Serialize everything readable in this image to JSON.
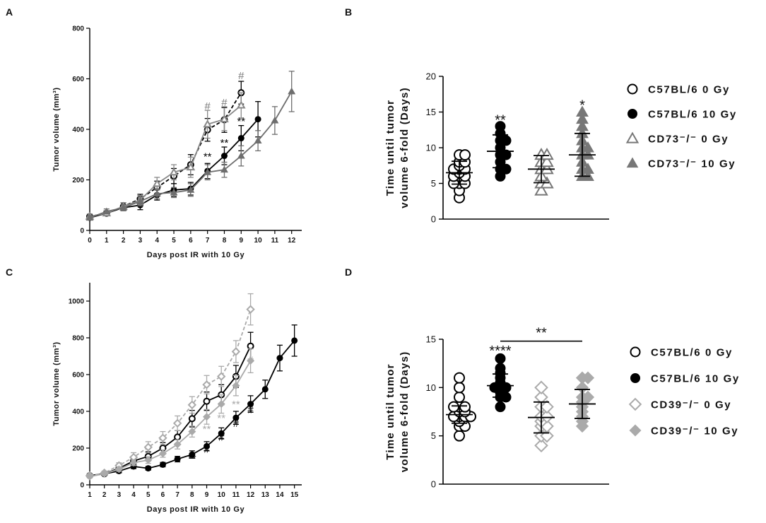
{
  "panels": {
    "a": {
      "label": "A"
    },
    "b": {
      "label": "B"
    },
    "c": {
      "label": "C"
    },
    "d": {
      "label": "D"
    }
  },
  "chart_data": [
    {
      "id": "A",
      "type": "line",
      "xlabel": "Days post IR with 10 Gy",
      "ylabel": "Tumor volume (mm³)",
      "xlim": [
        0,
        12.6
      ],
      "ylim": [
        0,
        800
      ],
      "xticks": [
        0,
        1,
        2,
        3,
        4,
        5,
        6,
        7,
        8,
        9,
        10,
        11,
        12
      ],
      "yticks": [
        0,
        200,
        400,
        600,
        800
      ],
      "series": [
        {
          "name": "C57BL/6 0 Gy",
          "style": "dashed-open-circle",
          "color": "#000000",
          "x": [
            0,
            1,
            2,
            3,
            4,
            5,
            6,
            7,
            8,
            9
          ],
          "y": [
            55,
            68,
            95,
            125,
            170,
            215,
            260,
            398,
            438,
            545
          ],
          "err": [
            10,
            10,
            15,
            18,
            25,
            30,
            40,
            45,
            50,
            45
          ]
        },
        {
          "name": "C57BL/6 10 Gy",
          "style": "solid-filled-circle",
          "color": "#000000",
          "x": [
            0,
            1,
            2,
            3,
            4,
            5,
            6,
            7,
            8,
            9,
            10
          ],
          "y": [
            50,
            68,
            90,
            100,
            140,
            160,
            165,
            235,
            295,
            365,
            440
          ],
          "err": [
            8,
            10,
            12,
            18,
            20,
            25,
            25,
            30,
            35,
            50,
            70
          ]
        },
        {
          "name": "CD73-/- 0 Gy",
          "style": "solid-open-triangle",
          "color": "#888888",
          "x": [
            0,
            1,
            2,
            3,
            4,
            5,
            6,
            7,
            8,
            9
          ],
          "y": [
            55,
            68,
            95,
            120,
            185,
            230,
            250,
            420,
            440,
            495
          ],
          "err": [
            10,
            10,
            15,
            18,
            25,
            30,
            40,
            55,
            45,
            50
          ]
        },
        {
          "name": "CD73-/- 10 Gy",
          "style": "solid-filled-triangle",
          "color": "#6e6e6e",
          "x": [
            0,
            1,
            2,
            3,
            4,
            5,
            6,
            7,
            8,
            9,
            10,
            11,
            12
          ],
          "y": [
            50,
            75,
            90,
            115,
            145,
            150,
            160,
            230,
            240,
            295,
            355,
            435,
            550
          ],
          "err": [
            8,
            10,
            12,
            18,
            20,
            20,
            25,
            30,
            30,
            40,
            40,
            55,
            80
          ]
        }
      ],
      "annotations": [
        {
          "text": "#",
          "x": 7,
          "y": 478,
          "color": "#777777"
        },
        {
          "text": "#",
          "x": 8,
          "y": 493,
          "color": "#777777"
        },
        {
          "text": "#",
          "x": 9,
          "y": 598,
          "color": "#777777"
        },
        {
          "text": "**",
          "x": 7,
          "y": 278,
          "color": "#000000"
        },
        {
          "text": "**",
          "x": 8,
          "y": 333,
          "color": "#000000"
        },
        {
          "text": "**",
          "x": 9,
          "y": 418,
          "color": "#000000"
        }
      ]
    },
    {
      "id": "B",
      "type": "scatter",
      "ylabel_line1": "Time until tumor",
      "ylabel_line2": "volume 6-fold (Days)",
      "ylim": [
        0,
        20
      ],
      "yticks": [
        0,
        5,
        10,
        15,
        20
      ],
      "groups": [
        {
          "name": "C57BL/6 0 Gy",
          "marker": "open-circle",
          "color": "#000000",
          "mean": 6.5,
          "sd": 1.6,
          "points": [
            3,
            4,
            5,
            5,
            5,
            6,
            6,
            6,
            6.5,
            7,
            7,
            7,
            7.5,
            8,
            8,
            9,
            9
          ]
        },
        {
          "name": "C57BL/6 10 Gy",
          "marker": "filled-circle",
          "color": "#000000",
          "mean": 9.5,
          "sd": 2.3,
          "points": [
            6,
            7,
            7,
            8,
            9,
            9,
            10,
            11,
            11,
            12,
            13
          ]
        },
        {
          "name": "CD73-/- 0 Gy",
          "marker": "open-triangle",
          "color": "#777777",
          "mean": 7.0,
          "sd": 1.9,
          "points": [
            4,
            5,
            5,
            6,
            7,
            7,
            8,
            8,
            9,
            9
          ]
        },
        {
          "name": "CD73-/- 10 Gy",
          "marker": "filled-triangle",
          "color": "#777777",
          "mean": 9.0,
          "sd": 3.0,
          "points": [
            6,
            6,
            7,
            7,
            8,
            9,
            9,
            10,
            10,
            11,
            12,
            13,
            14,
            15
          ]
        }
      ],
      "annotations": [
        {
          "text": "**",
          "group": 1,
          "y": 13.2
        },
        {
          "text": "*",
          "group": 3,
          "y": 15.3
        }
      ],
      "legend": [
        "C57BL/6 0 Gy",
        "C57BL/6 10 Gy",
        "CD73⁻/⁻ 0 Gy",
        "CD73⁻/⁻ 10 Gy"
      ]
    },
    {
      "id": "C",
      "type": "line",
      "xlabel": "Days post IR with 10 Gy",
      "ylabel": "Tumor volume (mm³)",
      "xlim": [
        1,
        15.5
      ],
      "ylim": [
        0,
        1100
      ],
      "xticks": [
        1,
        2,
        3,
        4,
        5,
        6,
        7,
        8,
        9,
        10,
        11,
        12,
        13,
        14,
        15
      ],
      "yticks": [
        0,
        200,
        400,
        600,
        800,
        1000
      ],
      "series": [
        {
          "name": "C57BL/6 0 Gy",
          "style": "solid-open-circle",
          "color": "#000000",
          "x": [
            1,
            2,
            3,
            4,
            5,
            6,
            7,
            8,
            9,
            10,
            11,
            12
          ],
          "y": [
            50,
            60,
            90,
            130,
            155,
            200,
            260,
            360,
            455,
            490,
            590,
            755
          ],
          "err": [
            8,
            10,
            12,
            20,
            25,
            30,
            35,
            45,
            50,
            55,
            60,
            75
          ]
        },
        {
          "name": "C57BL/6 10 Gy",
          "style": "solid-filled-circle",
          "color": "#000000",
          "x": [
            1,
            2,
            3,
            4,
            5,
            6,
            7,
            8,
            9,
            10,
            11,
            12,
            13,
            14,
            15
          ],
          "y": [
            50,
            60,
            75,
            100,
            90,
            110,
            140,
            165,
            210,
            280,
            365,
            440,
            520,
            690,
            785
          ],
          "err": [
            8,
            8,
            10,
            12,
            10,
            12,
            15,
            20,
            25,
            30,
            35,
            45,
            50,
            70,
            85
          ]
        },
        {
          "name": "CD39-/- 0 Gy",
          "style": "dashed-open-diamond",
          "color": "#aaaaaa",
          "x": [
            1,
            2,
            3,
            4,
            5,
            6,
            7,
            8,
            9,
            10,
            11,
            12
          ],
          "y": [
            50,
            65,
            105,
            150,
            205,
            255,
            335,
            435,
            545,
            590,
            725,
            955
          ],
          "err": [
            8,
            10,
            15,
            25,
            30,
            35,
            40,
            45,
            50,
            55,
            60,
            85
          ]
        },
        {
          "name": "CD39-/- 10 Gy",
          "style": "solid-filled-diamond",
          "color": "#aaaaaa",
          "x": [
            1,
            2,
            3,
            4,
            5,
            6,
            7,
            8,
            9,
            10,
            11,
            12
          ],
          "y": [
            45,
            60,
            85,
            120,
            135,
            170,
            220,
            290,
            370,
            440,
            540,
            675
          ],
          "err": [
            8,
            10,
            12,
            15,
            18,
            20,
            25,
            30,
            40,
            50,
            55,
            65
          ]
        }
      ],
      "annotations": [
        {
          "text": "**",
          "x": 8,
          "y": 125,
          "color": "#000000"
        },
        {
          "text": "**",
          "x": 9,
          "y": 285,
          "color": "#aaaaaa"
        },
        {
          "text": "#",
          "x": 9,
          "y": 175,
          "color": "#000000"
        },
        {
          "text": "**",
          "x": 10,
          "y": 345,
          "color": "#aaaaaa"
        },
        {
          "text": "#",
          "x": 10,
          "y": 240,
          "color": "#000000"
        },
        {
          "text": "**",
          "x": 11,
          "y": 420,
          "color": "#aaaaaa"
        },
        {
          "text": "#",
          "x": 11,
          "y": 315,
          "color": "#000000"
        },
        {
          "text": "#",
          "x": 12,
          "y": 660,
          "color": "#aaaaaa"
        },
        {
          "text": "#",
          "x": 12,
          "y": 390,
          "color": "#000000"
        }
      ]
    },
    {
      "id": "D",
      "type": "scatter",
      "ylabel_line1": "Time until tumor",
      "ylabel_line2": "volume 6-fold (Days)",
      "ylim": [
        0,
        15
      ],
      "yticks": [
        0,
        5,
        10,
        15
      ],
      "groups": [
        {
          "name": "C57BL/6 0 Gy",
          "marker": "open-circle",
          "color": "#000000",
          "mean": 7.2,
          "sd": 0.9,
          "points": [
            5,
            6,
            6,
            6.5,
            7,
            7,
            7,
            7,
            7.5,
            7.5,
            8,
            8,
            8,
            9,
            10,
            11
          ]
        },
        {
          "name": "C57BL/6 10 Gy",
          "marker": "filled-circle",
          "color": "#000000",
          "mean": 10.2,
          "sd": 1.2,
          "points": [
            8,
            9,
            9,
            9.5,
            10,
            10,
            10,
            10.5,
            11,
            11.5,
            12,
            13
          ]
        },
        {
          "name": "CD39-/- 0 Gy",
          "marker": "open-diamond",
          "color": "#aaaaaa",
          "mean": 6.9,
          "sd": 1.6,
          "points": [
            4,
            5,
            5,
            6,
            6,
            6.5,
            7,
            7,
            8,
            8,
            9,
            10
          ]
        },
        {
          "name": "CD39-/- 10 Gy",
          "marker": "filled-diamond",
          "color": "#aaaaaa",
          "mean": 8.3,
          "sd": 1.5,
          "points": [
            6,
            6.5,
            7,
            7.5,
            8,
            8.5,
            9,
            9,
            10,
            11,
            11
          ]
        }
      ],
      "annotations": [
        {
          "text": "****",
          "group": 1,
          "y": 13.3
        }
      ],
      "bracket": {
        "from_group": 1,
        "to_group": 3,
        "y": 14.8,
        "text": "**"
      },
      "legend": [
        "C57BL/6 0 Gy",
        "C57BL/6 10 Gy",
        "CD39⁻/⁻ 0 Gy",
        "CD39⁻/⁻ 10 Gy"
      ]
    }
  ]
}
